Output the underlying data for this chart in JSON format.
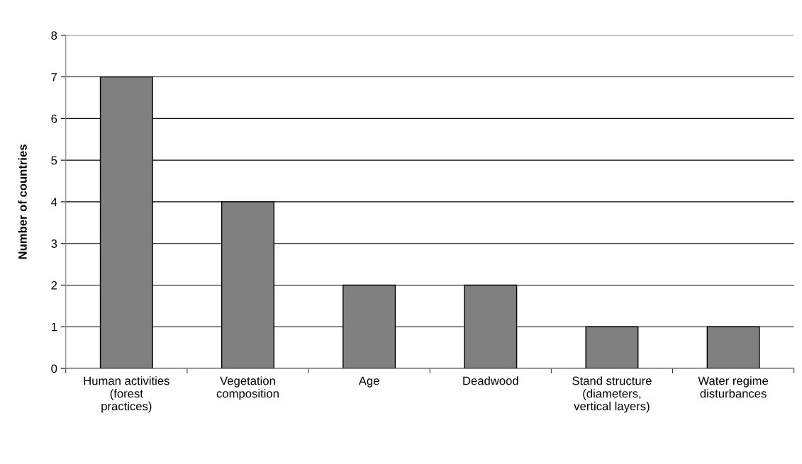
{
  "chart_data": {
    "type": "bar",
    "ylabel": "Number of countries",
    "categories": [
      "Human activities\n(forest\npractices)",
      "Vegetation\ncomposition",
      "Age",
      "Deadwood",
      "Stand structure\n(diameters,\nvertical layers)",
      "Water regime\ndisturbances"
    ],
    "values": [
      7,
      4,
      2,
      2,
      1,
      1
    ],
    "color": "#808080",
    "ylim": [
      0,
      8
    ],
    "yticks": [
      0,
      1,
      2,
      3,
      4,
      5,
      6,
      7,
      8
    ],
    "grid": "y",
    "legend": false
  }
}
